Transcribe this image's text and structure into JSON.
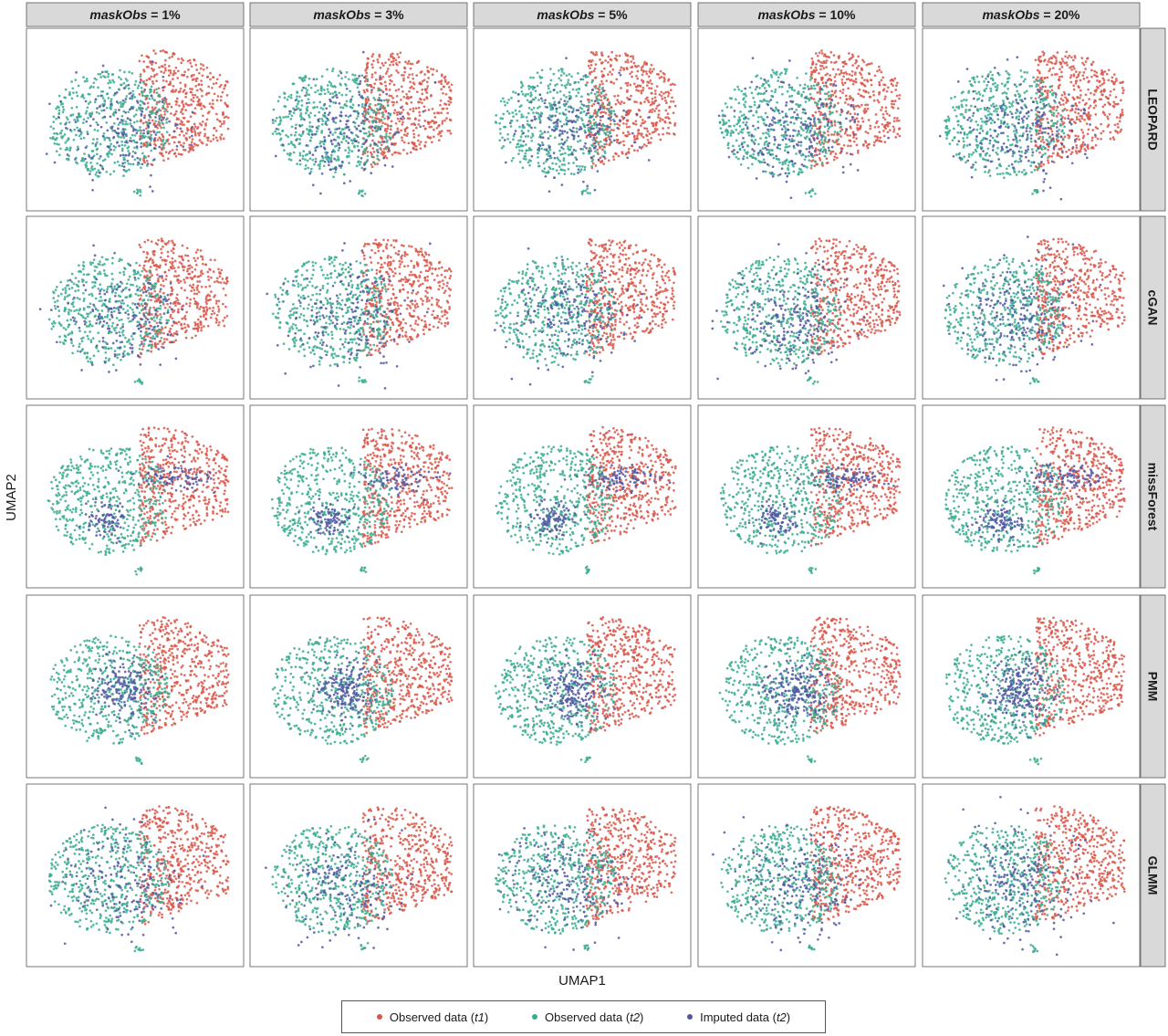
{
  "chart_data": {
    "type": "scatter",
    "layout": "facet-grid",
    "xlabel": "UMAP1",
    "ylabel": "UMAP2",
    "column_facets": {
      "variable": "maskObs",
      "labels": [
        "1%",
        "3%",
        "5%",
        "10%",
        "20%"
      ]
    },
    "row_facets": {
      "labels": [
        "LEOPARD",
        "cGAN",
        "missForest",
        "PMM",
        "GLMM"
      ]
    },
    "axis_ticks_shown": false,
    "grid": false,
    "legend_position": "bottom",
    "series": [
      {
        "name": "Observed data (",
        "name_italic": "t1",
        "name_suffix": ")",
        "color": "#d9574a",
        "region": "right lobe"
      },
      {
        "name": "Observed data (",
        "name_italic": "t2",
        "name_suffix": ")",
        "color": "#3aab91",
        "region": "left lobe"
      },
      {
        "name": "Imputed data (",
        "name_italic": "t2",
        "name_suffix": ")",
        "color": "#5257a3",
        "region": "center, overlapping t1 and t2 clusters"
      }
    ],
    "point_counts_approx": {
      "Observed data (t1)": 480,
      "Observed data (t2)": 470,
      "Imputed data (t2)": 170
    }
  }
}
